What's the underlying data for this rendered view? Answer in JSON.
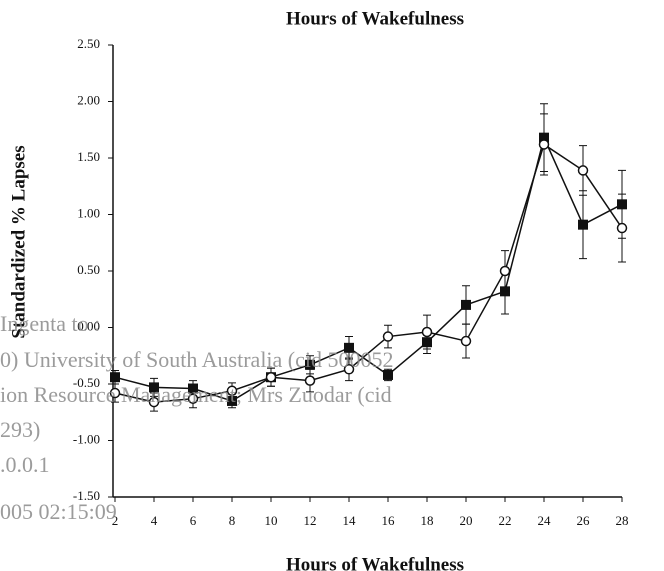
{
  "chart_data": {
    "type": "line",
    "title": "Hours of Wakefulness",
    "x_label": "Hours of Wakefulness",
    "y_label": "Standardized % Lapses",
    "x": [
      2,
      4,
      6,
      8,
      10,
      12,
      14,
      16,
      18,
      20,
      22,
      24,
      26,
      28
    ],
    "series": [
      {
        "marker": "square",
        "color": "#111111",
        "values": [
          -0.44,
          -0.53,
          -0.54,
          -0.65,
          -0.44,
          -0.33,
          -0.18,
          -0.42,
          -0.13,
          0.2,
          0.32,
          1.68,
          0.91,
          1.09
        ],
        "errors": [
          0.06,
          0.08,
          0.07,
          0.06,
          0.08,
          0.08,
          0.1,
          0.05,
          0.1,
          0.17,
          0.2,
          0.3,
          0.3,
          0.3
        ]
      },
      {
        "marker": "circle",
        "color": "#111111",
        "values": [
          -0.58,
          -0.66,
          -0.63,
          -0.56,
          -0.44,
          -0.47,
          -0.37,
          -0.08,
          -0.04,
          -0.12,
          0.5,
          1.62,
          1.39,
          0.88
        ],
        "errors": [
          0.08,
          0.08,
          0.08,
          0.07,
          0.08,
          0.1,
          0.1,
          0.1,
          0.15,
          0.15,
          0.18,
          0.27,
          0.22,
          0.3
        ]
      }
    ],
    "xlim": [
      2,
      28
    ],
    "xticks": [
      2,
      4,
      6,
      8,
      10,
      12,
      14,
      16,
      18,
      20,
      22,
      24,
      26,
      28
    ],
    "ylim": [
      -1.5,
      2.5
    ],
    "yticks": [
      {
        "value": -1.5,
        "label": "-1.50"
      },
      {
        "value": -1,
        "label": "-1.00"
      },
      {
        "value": -0.5,
        "label": "-0.50"
      },
      {
        "value": 0,
        "label": "0.00"
      },
      {
        "value": 0.5,
        "label": "0.50"
      },
      {
        "value": 1,
        "label": "1.00"
      },
      {
        "value": 1.5,
        "label": "1.50"
      },
      {
        "value": 2,
        "label": "2.00"
      },
      {
        "value": 2.5,
        "label": "2.50"
      }
    ],
    "grid": false
  },
  "watermark": [
    "Ingenta to :",
    "0) University of South Australia (cid 500052",
    "ion Resource Management; Mrs Zuodar (cid",
    "293)",
    ".0.0.1",
    "005 02:15:09"
  ]
}
